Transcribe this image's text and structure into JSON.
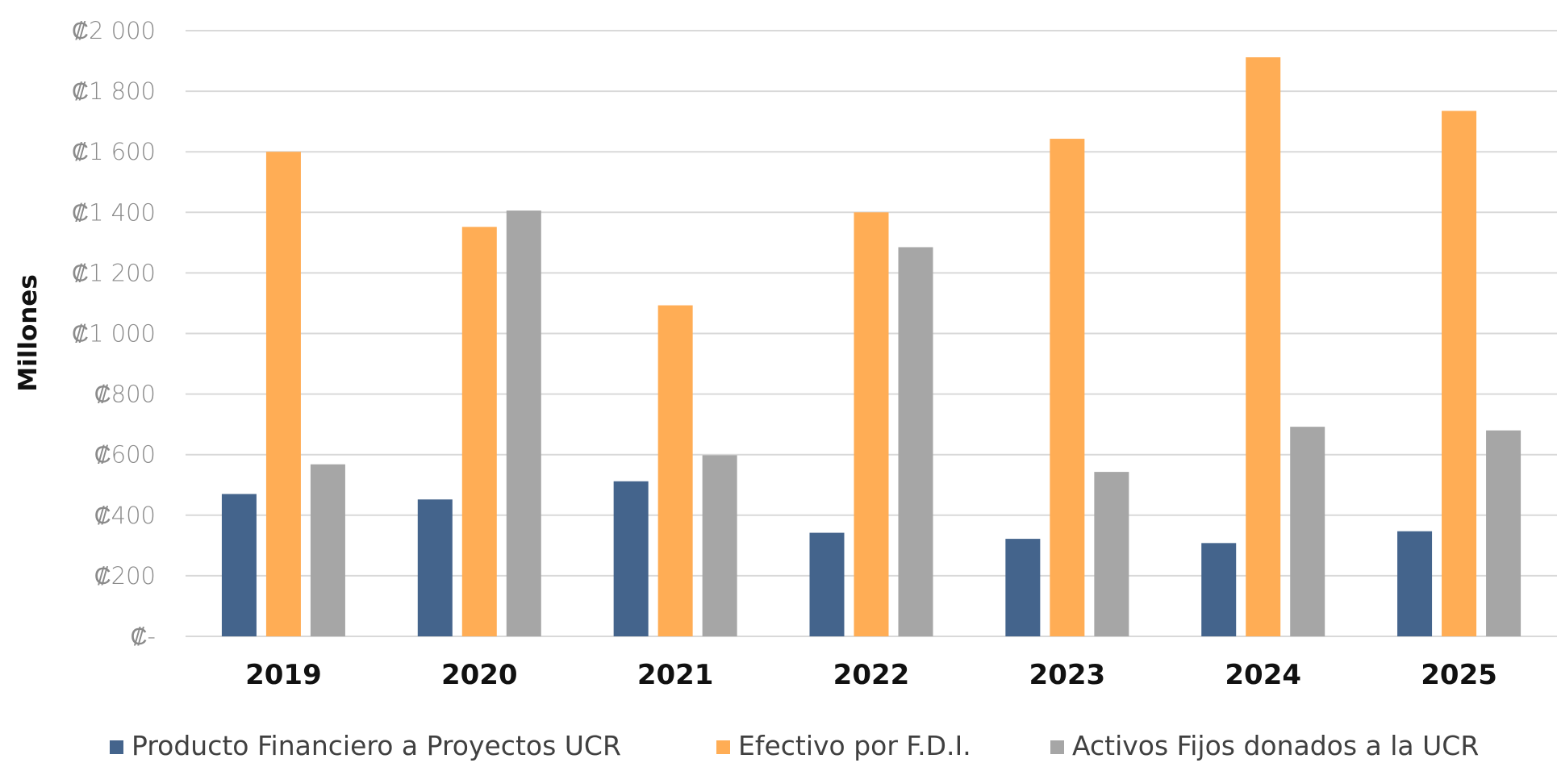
{
  "chart_data": {
    "type": "bar",
    "title": "",
    "xlabel": "",
    "ylabel": "Millones",
    "ylim": [
      0,
      2000
    ],
    "yticks": [
      0,
      200,
      400,
      600,
      800,
      1000,
      1200,
      1400,
      1600,
      1800,
      2000
    ],
    "ytick_labels": [
      "₡-",
      "₡200",
      "₡400",
      "₡600",
      "₡800",
      "₡1 000",
      "₡1 200",
      "₡1 400",
      "₡1 600",
      "₡1 800",
      "₡2 000"
    ],
    "categories": [
      "2019",
      "2020",
      "2021",
      "2022",
      "2023",
      "2024",
      "2025"
    ],
    "series": [
      {
        "name": "Producto Financiero a Proyectos UCR",
        "color": "#44648c",
        "values": [
          470,
          452,
          512,
          342,
          322,
          308,
          347
        ]
      },
      {
        "name": "Efectivo por F.D.I.",
        "color": "#ffad55",
        "values": [
          1600,
          1352,
          1093,
          1400,
          1643,
          1912,
          1735
        ]
      },
      {
        "name": "Activos Fijos donados a la UCR",
        "color": "#a6a6a6",
        "values": [
          568,
          1406,
          598,
          1285,
          543,
          692,
          680
        ]
      }
    ],
    "grid": true,
    "legend_position": "bottom"
  }
}
